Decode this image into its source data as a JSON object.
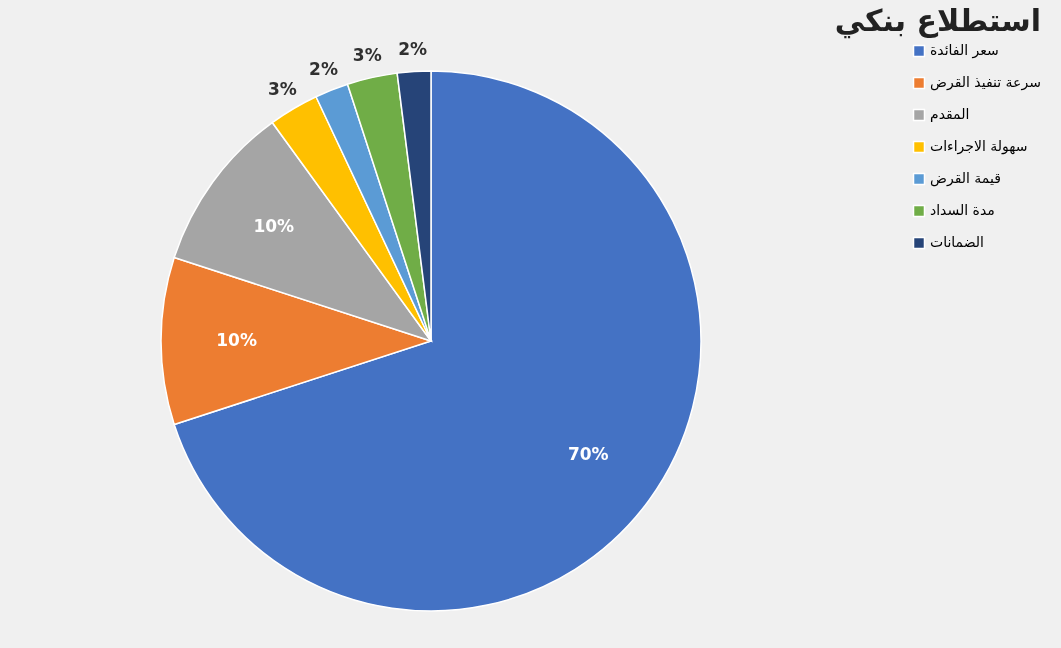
{
  "chart_data": {
    "type": "pie",
    "title": "استطلاع بنكي",
    "categories": [
      "سعر الفائدة",
      "سرعة تنفيذ القرض",
      "المقدم",
      "سهولة الاجراءات",
      "قيمة القرض",
      "مدة السداد",
      "الضمانات"
    ],
    "values": [
      70,
      10,
      10,
      3,
      2,
      3,
      2
    ],
    "colors": [
      "#4472c4",
      "#ed7d31",
      "#a5a5a5",
      "#ffc000",
      "#5b9bd5",
      "#70ad47",
      "#264478"
    ],
    "value_labels": [
      "70%",
      "10%",
      "10%",
      "3%",
      "2%",
      "3%",
      "2%"
    ],
    "legend": "right"
  }
}
